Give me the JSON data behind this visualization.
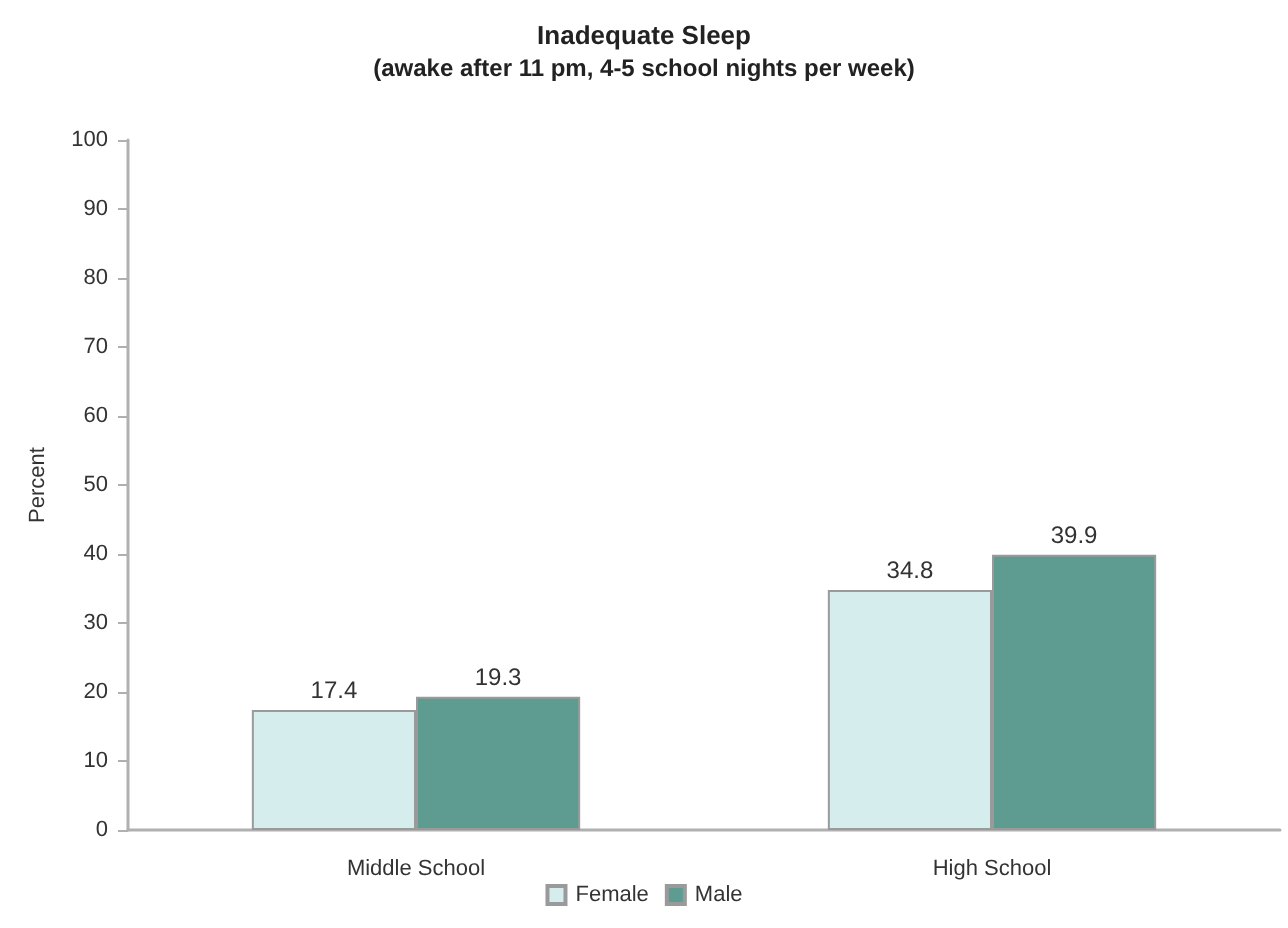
{
  "chart_data": {
    "type": "bar",
    "title": "Inadequate Sleep",
    "subtitle": "(awake after 11 pm, 4-5 school nights per week)",
    "ylabel": "Percent",
    "categories": [
      "Middle School",
      "High School"
    ],
    "series": [
      {
        "name": "Female",
        "color": "#d6eded",
        "values": [
          17.4,
          34.8
        ]
      },
      {
        "name": "Male",
        "color": "#5e9c92",
        "values": [
          19.3,
          39.9
        ]
      }
    ],
    "ylim": [
      0,
      100
    ],
    "yticks": [
      0,
      10,
      20,
      30,
      40,
      50,
      60,
      70,
      80,
      90,
      100
    ],
    "grid": false,
    "legend": "bottom",
    "data_labels": true
  }
}
